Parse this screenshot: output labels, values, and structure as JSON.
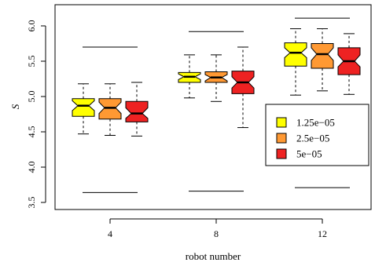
{
  "chart_data": {
    "type": "boxplot",
    "xlabel": "robot number",
    "ylabel": "S",
    "ylim": [
      3.4,
      6.3
    ],
    "yticks": [
      "3.5",
      "4.0",
      "4.5",
      "5.0",
      "5.5",
      "6.0"
    ],
    "categories": [
      "4",
      "8",
      "12"
    ],
    "legend": {
      "position": "right",
      "entries": [
        "1.25e−05",
        "2.5e−05",
        "5e−05"
      ]
    },
    "series": [
      {
        "name": "1.25e−05",
        "color": "#ffff00",
        "boxes": [
          {
            "min": 4.47,
            "q1": 4.72,
            "median": 4.87,
            "q3": 4.97,
            "max": 5.18,
            "notch_lo": 4.8,
            "notch_hi": 4.94
          },
          {
            "min": 4.98,
            "q1": 5.2,
            "median": 5.28,
            "q3": 5.34,
            "max": 5.59,
            "notch_lo": 5.24,
            "notch_hi": 5.32
          },
          {
            "min": 5.02,
            "q1": 5.43,
            "median": 5.62,
            "q3": 5.76,
            "max": 5.96,
            "notch_lo": 5.55,
            "notch_hi": 5.69
          }
        ]
      },
      {
        "name": "2.5e−05",
        "color": "#ff9933",
        "boxes": [
          {
            "min": 4.45,
            "q1": 4.68,
            "median": 4.84,
            "q3": 4.97,
            "max": 5.18,
            "notch_lo": 4.76,
            "notch_hi": 4.92
          },
          {
            "min": 4.93,
            "q1": 5.2,
            "median": 5.27,
            "q3": 5.35,
            "max": 5.59,
            "notch_lo": 5.22,
            "notch_hi": 5.31
          },
          {
            "min": 5.08,
            "q1": 5.4,
            "median": 5.6,
            "q3": 5.75,
            "max": 5.96,
            "notch_lo": 5.51,
            "notch_hi": 5.69
          }
        ]
      },
      {
        "name": "5e−05",
        "color": "#ee2222",
        "boxes": [
          {
            "min": 4.44,
            "q1": 4.64,
            "median": 4.76,
            "q3": 4.93,
            "max": 5.2,
            "notch_lo": 4.69,
            "notch_hi": 4.84
          },
          {
            "min": 4.56,
            "q1": 5.04,
            "median": 5.2,
            "q3": 5.36,
            "max": 5.7,
            "notch_lo": 5.12,
            "notch_hi": 5.28
          },
          {
            "min": 5.03,
            "q1": 5.31,
            "median": 5.5,
            "q3": 5.69,
            "max": 5.89,
            "notch_lo": 5.42,
            "notch_hi": 5.59
          }
        ]
      }
    ],
    "reference_lines": [
      {
        "category": "4",
        "upper": 5.7,
        "lower": 3.64
      },
      {
        "category": "8",
        "upper": 5.92,
        "lower": 3.66
      },
      {
        "category": "12",
        "upper": 6.11,
        "lower": 3.71
      }
    ]
  }
}
